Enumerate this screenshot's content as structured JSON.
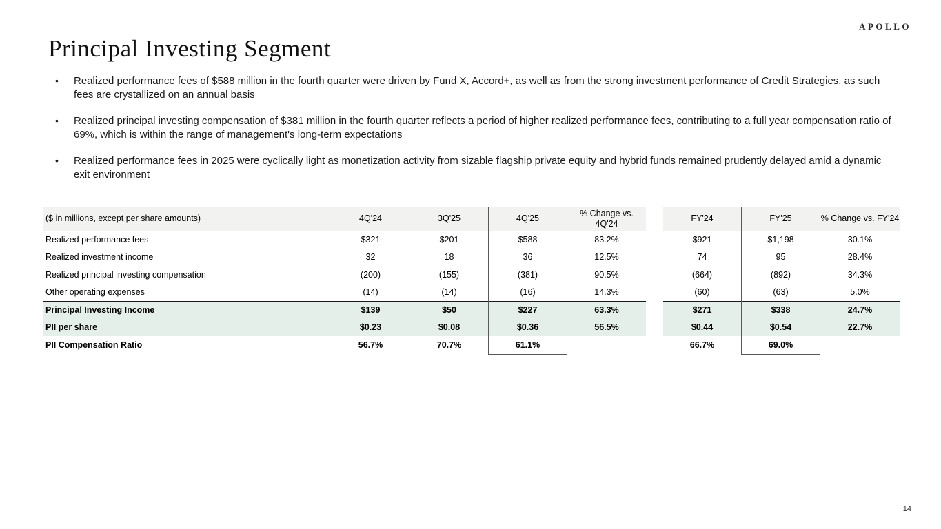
{
  "logo": "APOLLO",
  "title": "Principal Investing Segment",
  "bullets": [
    "Realized performance fees of $588 million in the fourth quarter were driven by Fund X, Accord+, as well as from the strong investment performance of Credit Strategies, as such fees are crystallized on an annual basis",
    "Realized principal investing compensation of $381 million in the fourth quarter reflects a period of higher realized performance fees, contributing to a full year compensation ratio of 69%, which is within the range of management's long-term expectations",
    "Realized performance fees in 2025 were cyclically light as monetization activity from sizable flagship private equity and hybrid funds remained prudently delayed amid a dynamic exit environment"
  ],
  "table": {
    "note": "($ in millions, except per share amounts)",
    "columns": [
      "4Q'24",
      "3Q'25",
      "4Q'25",
      "% Change vs. 4Q'24",
      "FY'24",
      "FY'25",
      "% Change vs. FY'24"
    ],
    "highlighted_columns": [
      "4Q'25",
      "FY'25"
    ],
    "rows": [
      {
        "label": "Realized performance fees",
        "values": [
          "$321",
          "$201",
          "$588",
          "83.2%",
          "$921",
          "$1,198",
          "30.1%"
        ],
        "style": "normal"
      },
      {
        "label": "Realized investment income",
        "values": [
          "32",
          "18",
          "36",
          "12.5%",
          "74",
          "95",
          "28.4%"
        ],
        "style": "normal"
      },
      {
        "label": "Realized principal investing compensation",
        "values": [
          "(200)",
          "(155)",
          "(381)",
          "90.5%",
          "(664)",
          "(892)",
          "34.3%"
        ],
        "style": "normal"
      },
      {
        "label": "Other operating expenses",
        "values": [
          "(14)",
          "(14)",
          "(16)",
          "14.3%",
          "(60)",
          "(63)",
          "5.0%"
        ],
        "style": "normal"
      },
      {
        "label": "Principal Investing Income",
        "values": [
          "$139",
          "$50",
          "$227",
          "63.3%",
          "$271",
          "$338",
          "24.7%"
        ],
        "style": "total"
      },
      {
        "label": "PII per share",
        "values": [
          "$0.23",
          "$0.08",
          "$0.36",
          "56.5%",
          "$0.44",
          "$0.54",
          "22.7%"
        ],
        "style": "total"
      },
      {
        "label": "PII Compensation Ratio",
        "values": [
          "56.7%",
          "70.7%",
          "61.1%",
          "",
          "66.7%",
          "69.0%",
          ""
        ],
        "style": "bold"
      }
    ]
  },
  "page_number": "14",
  "colors": {
    "highlight_row_bg": "#e4efea",
    "header_row_bg": "#f2f2f0",
    "box_border": "#595959",
    "total_rule": "#1a1a1a"
  }
}
